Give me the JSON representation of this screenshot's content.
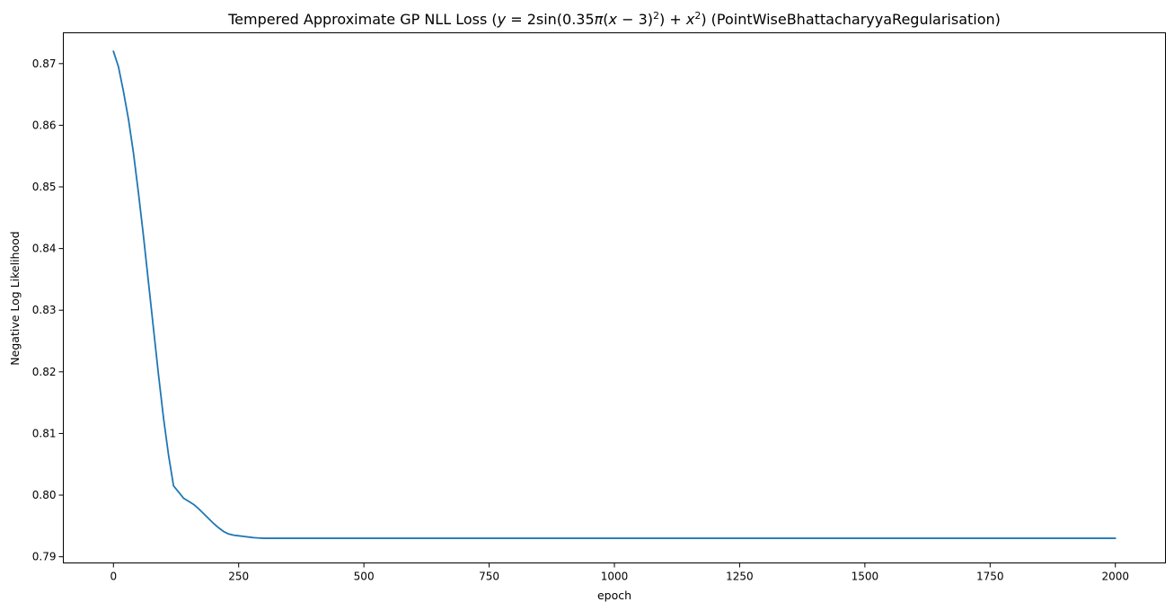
{
  "chart_data": {
    "type": "line",
    "title": "Tempered Approximate GP NLL Loss (y = 2sin(0.35π(x − 3)²) + x²) (PointWiseBhattacharyyaRegularisation)",
    "title_parts": {
      "before": "Tempered Approximate GP NLL Loss (",
      "formula_a": "y",
      "formula_b": " = 2sin(0.35",
      "formula_c": "π",
      "formula_d": "(",
      "formula_e": "x",
      "formula_f": " − 3)",
      "formula_g": "2",
      "formula_h": ") + ",
      "formula_i": "x",
      "formula_j": "2",
      "after": ") (PointWiseBhattacharyyaRegularisation)"
    },
    "xlabel": "epoch",
    "ylabel": "Negative Log Likelihood",
    "xlim": [
      -100,
      2100
    ],
    "ylim": [
      0.789,
      0.875
    ],
    "xticks": [
      0,
      250,
      500,
      750,
      1000,
      1250,
      1500,
      1750,
      2000
    ],
    "yticks": [
      0.79,
      0.8,
      0.81,
      0.82,
      0.83,
      0.84,
      0.85,
      0.86,
      0.87
    ],
    "ytick_labels": [
      "0.79",
      "0.80",
      "0.81",
      "0.82",
      "0.83",
      "0.84",
      "0.85",
      "0.86",
      "0.87"
    ],
    "grid": false,
    "series": [
      {
        "color": "#1f77b4",
        "x": [
          0,
          10,
          20,
          30,
          40,
          50,
          60,
          70,
          80,
          90,
          100,
          110,
          120,
          130,
          140,
          150,
          160,
          170,
          180,
          190,
          200,
          210,
          220,
          230,
          240,
          250,
          260,
          270,
          280,
          290,
          300,
          320,
          340,
          360,
          400,
          500,
          750,
          1000,
          1250,
          1500,
          1750,
          2000
        ],
        "y": [
          0.872,
          0.8695,
          0.8655,
          0.861,
          0.8555,
          0.849,
          0.842,
          0.8345,
          0.827,
          0.8195,
          0.8125,
          0.8065,
          0.8015,
          0.8005,
          0.7995,
          0.799,
          0.7985,
          0.7978,
          0.797,
          0.7962,
          0.7954,
          0.7947,
          0.7941,
          0.7937,
          0.7935,
          0.7934,
          0.7933,
          0.7932,
          0.7931,
          0.79305,
          0.793,
          0.793,
          0.793,
          0.793,
          0.793,
          0.793,
          0.793,
          0.793,
          0.793,
          0.793,
          0.793,
          0.793
        ]
      }
    ]
  }
}
